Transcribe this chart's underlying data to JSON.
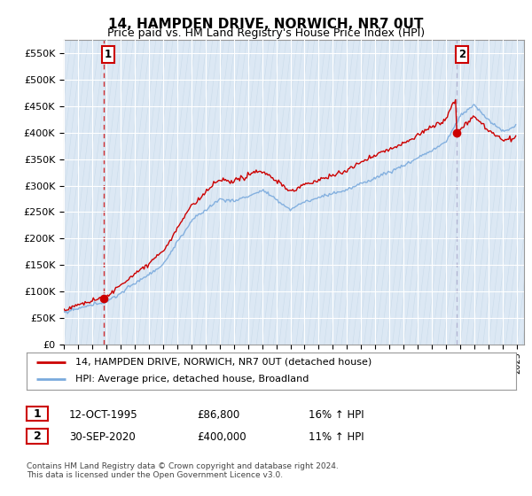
{
  "title": "14, HAMPDEN DRIVE, NORWICH, NR7 0UT",
  "subtitle": "Price paid vs. HM Land Registry's House Price Index (HPI)",
  "ylabel_ticks": [
    "£0",
    "£50K",
    "£100K",
    "£150K",
    "£200K",
    "£250K",
    "£300K",
    "£350K",
    "£400K",
    "£450K",
    "£500K",
    "£550K"
  ],
  "ylim": [
    0,
    575000
  ],
  "ytick_values": [
    0,
    50000,
    100000,
    150000,
    200000,
    250000,
    300000,
    350000,
    400000,
    450000,
    500000,
    550000
  ],
  "sale1_date": 1995.79,
  "sale1_price": 86800,
  "sale2_date": 2020.75,
  "sale2_price": 400000,
  "hpi_color": "#7aaadd",
  "price_color": "#cc0000",
  "annotation_box_color": "#cc0000",
  "grid_color": "#c8d8e8",
  "background_color": "#dce8f4",
  "legend_label_price": "14, HAMPDEN DRIVE, NORWICH, NR7 0UT (detached house)",
  "legend_label_hpi": "HPI: Average price, detached house, Broadland",
  "info1_label": "1",
  "info1_date": "12-OCT-1995",
  "info1_price": "£86,800",
  "info1_hpi": "16% ↑ HPI",
  "info2_label": "2",
  "info2_date": "30-SEP-2020",
  "info2_price": "£400,000",
  "info2_hpi": "11% ↑ HPI",
  "footer": "Contains HM Land Registry data © Crown copyright and database right 2024.\nThis data is licensed under the Open Government Licence v3.0.",
  "xlim_start": 1993.0,
  "xlim_end": 2025.5
}
